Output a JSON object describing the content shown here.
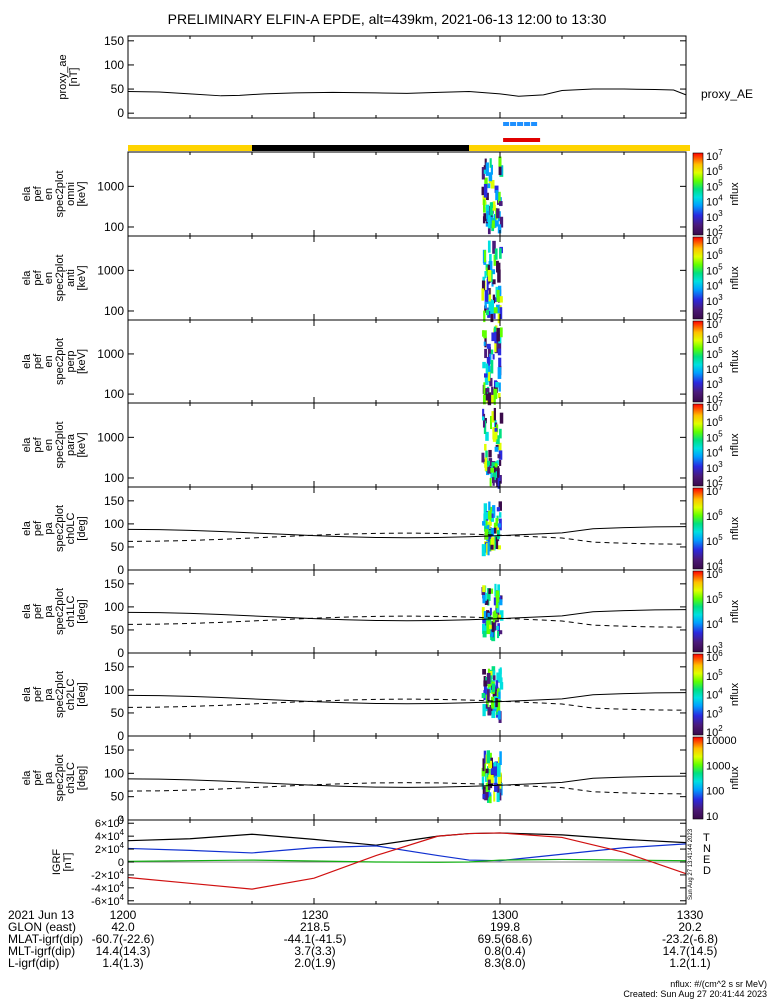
{
  "title": "PRELIMINARY ELFIN-A EPDE, alt=439km, 2021-06-13 12:00 to 13:30",
  "colors": {
    "orbit_yellow": "#ffd400",
    "orbit_black": "#000000",
    "bar_blue": "#1e90ff",
    "bar_red": "#e00000",
    "bfield_x": "#000000",
    "bfield_y": "#1030d0",
    "bfield_z": "#10b010",
    "bfield_total": "#d01010",
    "colorbar": [
      "#ffffff",
      "#3a0a4a",
      "#4b1a7a",
      "#2a2ae0",
      "#00a0ff",
      "#00e0e0",
      "#00e080",
      "#60ff00",
      "#e0ff00",
      "#ffc000",
      "#ff6000",
      "#ff0000"
    ]
  },
  "chart_data": [
    {
      "id": "proxy_ae",
      "type": "line",
      "ylabel": "proxy_ae\n[nT]",
      "legend": "proxy_AE",
      "ylim": [
        -10,
        160
      ],
      "yticks": [
        "0",
        "50",
        "100",
        "150"
      ],
      "x": [
        0,
        5,
        10,
        15,
        18,
        22,
        27,
        33,
        40,
        45,
        50,
        55,
        60,
        63,
        67,
        70,
        75,
        80,
        85,
        88,
        90
      ],
      "values": [
        45,
        44,
        40,
        36,
        37,
        40,
        42,
        43,
        42,
        41,
        43,
        45,
        40,
        35,
        38,
        47,
        50,
        50,
        49,
        48,
        38
      ]
    },
    {
      "id": "ela_pef_en_spec2plot_omni",
      "type": "heatmap",
      "ylabel": "ela\npef\nen\nspec2plot\nomni\n[keV]",
      "yscale": "log",
      "ylim": [
        60,
        7000
      ],
      "yticks": [
        "100",
        "1000"
      ],
      "colorbar": {
        "label": "nflux",
        "ticks": [
          "10^2",
          "10^3",
          "10^4",
          "10^5",
          "10^6",
          "10^7"
        ]
      }
    },
    {
      "id": "ela_pef_en_spec2plot_anti",
      "type": "heatmap",
      "ylabel": "ela\npef\nen\nspec2plot\nanti\n[keV]",
      "yscale": "log",
      "ylim": [
        60,
        7000
      ],
      "yticks": [
        "100",
        "1000"
      ],
      "colorbar": {
        "label": "nflux",
        "ticks": [
          "10^2",
          "10^3",
          "10^4",
          "10^5",
          "10^6",
          "10^7"
        ]
      }
    },
    {
      "id": "ela_pef_en_spec2plot_perp",
      "type": "heatmap",
      "ylabel": "ela\npef\nen\nspec2plot\nperp\n[keV]",
      "yscale": "log",
      "ylim": [
        60,
        7000
      ],
      "yticks": [
        "100",
        "1000"
      ],
      "colorbar": {
        "label": "nflux",
        "ticks": [
          "10^2",
          "10^3",
          "10^4",
          "10^5",
          "10^6",
          "10^7"
        ]
      }
    },
    {
      "id": "ela_pef_en_spec2plot_para",
      "type": "heatmap",
      "ylabel": "ela\npef\nen\nspec2plot\npara\n[keV]",
      "yscale": "log",
      "ylim": [
        60,
        7000
      ],
      "yticks": [
        "100",
        "1000"
      ],
      "colorbar": {
        "label": "nflux",
        "ticks": [
          "10^2",
          "10^3",
          "10^4",
          "10^5",
          "10^6",
          "10^7"
        ]
      }
    },
    {
      "id": "ela_pef_pa_spec2plot_ch0LC",
      "type": "heatmap",
      "ylabel": "ela\npef\npa\nspec2plot\nch0LC\n[deg]",
      "ylim": [
        0,
        180
      ],
      "yticks": [
        "0",
        "50",
        "100",
        "150"
      ],
      "colorbar": {
        "label": "nflux",
        "ticks": [
          "10^4",
          "10^5",
          "10^6",
          "10^7"
        ]
      }
    },
    {
      "id": "ela_pef_pa_spec2plot_ch1LC",
      "type": "heatmap",
      "ylabel": "ela\npef\npa\nspec2plot\nch1LC\n[deg]",
      "ylim": [
        0,
        180
      ],
      "yticks": [
        "0",
        "50",
        "100",
        "150"
      ],
      "colorbar": {
        "label": "nflux",
        "ticks": [
          "10^3",
          "10^4",
          "10^5",
          "10^6"
        ]
      }
    },
    {
      "id": "ela_pef_pa_spec2plot_ch2LC",
      "type": "heatmap",
      "ylabel": "ela\npef\npa\nspec2plot\nch2LC\n[deg]",
      "ylim": [
        0,
        180
      ],
      "yticks": [
        "0",
        "50",
        "100",
        "150"
      ],
      "colorbar": {
        "label": "nflux",
        "ticks": [
          "10^2",
          "10^3",
          "10^4",
          "10^5",
          "10^6"
        ]
      }
    },
    {
      "id": "ela_pef_pa_spec2plot_ch3LC",
      "type": "heatmap",
      "ylabel": "ela\npef\npa\nspec2plot\nch3LC\n[deg]",
      "ylim": [
        0,
        180
      ],
      "yticks": [
        "0",
        "50",
        "100",
        "150"
      ],
      "colorbar": {
        "label": "nflux",
        "ticks": [
          "10",
          "100",
          "1000",
          "10000"
        ]
      }
    },
    {
      "id": "igrf",
      "type": "line",
      "ylabel": "IGRF\n[nT]",
      "ylim": [
        -65000,
        65000
      ],
      "yticks": [
        "-6×10^4",
        "-4×10^4",
        "-2×10^4",
        "0",
        "2×10^4",
        "4×10^4",
        "6×10^4"
      ],
      "x": [
        0,
        10,
        20,
        30,
        40,
        50,
        55,
        60,
        70,
        80,
        90
      ],
      "series": [
        {
          "name": "T",
          "values": [
            33000,
            36000,
            43000,
            35000,
            26000,
            40000,
            44000,
            45000,
            42000,
            35000,
            30000
          ]
        },
        {
          "name": "N",
          "values": [
            21000,
            18000,
            14000,
            22000,
            25000,
            10000,
            3000,
            2000,
            12000,
            22000,
            28000
          ]
        },
        {
          "name": "E",
          "values": [
            1000,
            2000,
            3000,
            1500,
            0,
            -500,
            0,
            3000,
            4000,
            3000,
            2000
          ]
        },
        {
          "name": "D",
          "values": [
            -24000,
            -33000,
            -42000,
            -25000,
            10000,
            40000,
            44000,
            45000,
            38000,
            15000,
            -18000
          ]
        }
      ]
    }
  ],
  "xaxis": {
    "ticks": [
      "1200",
      "1230",
      "1300",
      "1330"
    ],
    "rows": [
      {
        "label": "2021 Jun 13",
        "values": [
          "1200",
          "1230",
          "1300",
          "1330"
        ]
      },
      {
        "label": "GLON (east)",
        "values": [
          "42.0",
          "218.5",
          "199.8",
          "20.2"
        ]
      },
      {
        "label": "MLAT-igrf(dip)",
        "values": [
          "-60.7(-22.6)",
          "-44.1(-41.5)",
          "69.5(68.6)",
          "-23.2(-6.8)"
        ]
      },
      {
        "label": "MLT-igrf(dip)",
        "values": [
          "14.4(14.3)",
          "3.7(3.3)",
          "0.8(0.4)",
          "14.7(14.5)"
        ]
      },
      {
        "label": "L-igrf(dip)",
        "values": [
          "1.4(1.3)",
          "2.0(1.9)",
          "8.3(8.0)",
          "1.2(1.1)"
        ]
      }
    ]
  },
  "credit_units": "nflux: #/(cm^2 s sr MeV)",
  "credit_created": "Created: Sun Aug 27 20:41:44 2023",
  "side_stamp": "Sun Aug 27 13:41:44 2023"
}
